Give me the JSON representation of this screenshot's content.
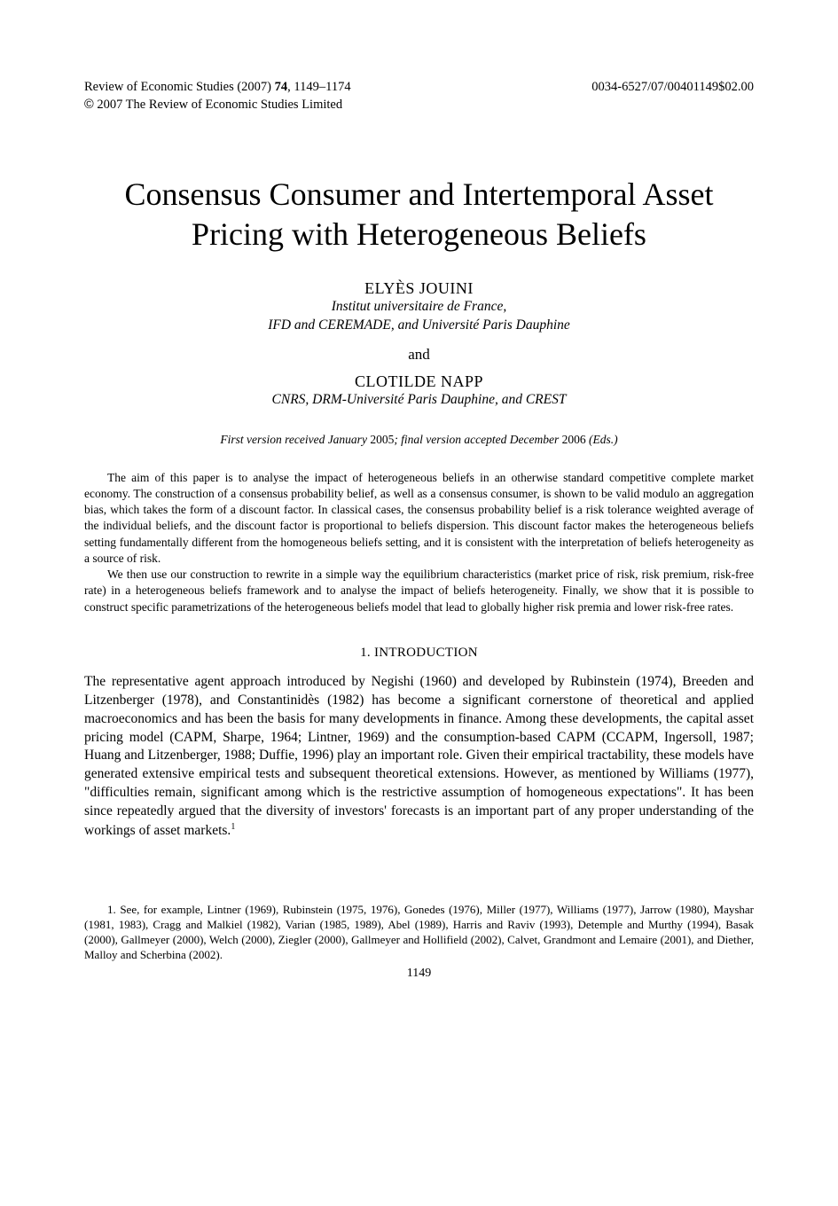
{
  "header": {
    "journal": "Review of Economic Studies (2007) ",
    "volume": "74",
    "pages": ", 1149–1174",
    "issn": "0034-6527/07/00401149$02.00",
    "copyright_symbol": "©",
    "copyright_text": " 2007 The Review of Economic Studies Limited"
  },
  "title": "Consensus Consumer and Intertemporal Asset Pricing with Heterogeneous Beliefs",
  "authors": [
    {
      "name": "ELYÈS JOUINI",
      "affiliation_line1": "Institut universitaire de France,",
      "affiliation_line2": "IFD and CEREMADE, and Université Paris Dauphine"
    },
    {
      "name": "CLOTILDE NAPP",
      "affiliation_line1": "CNRS, DRM-Université Paris Dauphine, and CREST",
      "affiliation_line2": ""
    }
  ],
  "connector": "and",
  "version_prefix": "First version received January ",
  "version_year1": "2005",
  "version_mid": "; final version accepted December ",
  "version_year2": "2006",
  "version_suffix": " (Eds.)",
  "abstract": {
    "p1": "The aim of this paper is to analyse the impact of heterogeneous beliefs in an otherwise standard competitive complete market economy. The construction of a consensus probability belief, as well as a consensus consumer, is shown to be valid modulo an aggregation bias, which takes the form of a discount factor. In classical cases, the consensus probability belief is a risk tolerance weighted average of the individual beliefs, and the discount factor is proportional to beliefs dispersion. This discount factor makes the heterogeneous beliefs setting fundamentally different from the homogeneous beliefs setting, and it is consistent with the interpretation of beliefs heterogeneity as a source of risk.",
    "p2": "We then use our construction to rewrite in a simple way the equilibrium characteristics (market price of risk, risk premium, risk-free rate) in a heterogeneous beliefs framework and to analyse the impact of beliefs heterogeneity. Finally, we show that it is possible to construct specific parametrizations of the heterogeneous beliefs model that lead to globally higher risk premia and lower risk-free rates."
  },
  "section_heading": "1. INTRODUCTION",
  "body_p1_part1": "The representative agent approach introduced by Negishi (1960) and developed by Rubinstein (1974), Breeden and Litzenberger (1978), and Constantinidès (1982) has become a significant cornerstone of theoretical and applied macroeconomics and has been the basis for many developments in finance. Among these developments, the capital asset pricing model (CAPM, Sharpe, 1964; Lintner, 1969) and the consumption-based CAPM (CCAPM, Ingersoll, 1987; Huang and Litzenberger, 1988; Duffie, 1996) play an important role. Given their empirical tractability, these models have generated extensive empirical tests and subsequent theoretical extensions. However, as mentioned by Williams (1977), \"difficulties remain, significant among which is the restrictive assumption of homogeneous expectations\". It has been since repeatedly argued that the diversity of investors' forecasts is an important part of any proper understanding of the workings of asset markets.",
  "footnote_marker": "1",
  "footnote1": "1. See, for example, Lintner (1969), Rubinstein (1975, 1976), Gonedes (1976), Miller (1977), Williams (1977), Jarrow (1980), Mayshar (1981, 1983), Cragg and Malkiel (1982), Varian (1985, 1989), Abel (1989), Harris and Raviv (1993), Detemple and Murthy (1994), Basak (2000), Gallmeyer (2000), Welch (2000), Ziegler (2000), Gallmeyer and Hollifield (2002), Calvet, Grandmont and Lemaire (2001), and Diether, Malloy and Scherbina (2002).",
  "page_number": "1149"
}
